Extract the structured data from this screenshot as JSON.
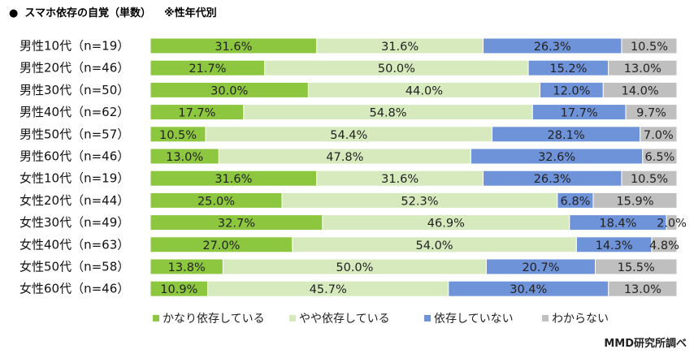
{
  "header": {
    "bullet": "●"
  },
  "chart_data": {
    "type": "bar",
    "orientation": "horizontal",
    "stacked": true,
    "title": "スマホ依存の自覚（単数）",
    "subtitle": "※性年代別",
    "xlabel": "",
    "ylabel": "",
    "xlim": [
      0,
      100
    ],
    "grid": false,
    "legend_position": "bottom",
    "unit": "%",
    "categories": [
      "男性10代（n=19）",
      "男性20代（n=46）",
      "男性30代（n=50）",
      "男性40代（n=62）",
      "男性50代（n=57）",
      "男性60代（n=46）",
      "女性10代（n=19）",
      "女性20代（n=44）",
      "女性30代（n=49）",
      "女性40代（n=63）",
      "女性50代（n=58）",
      "女性60代（n=46）"
    ],
    "series": [
      {
        "name": "かなり依存している",
        "color": "#8dc63f",
        "values": [
          31.6,
          21.7,
          30.0,
          17.7,
          10.5,
          13.0,
          31.6,
          25.0,
          32.7,
          27.0,
          13.8,
          10.9
        ]
      },
      {
        "name": "やや依存している",
        "color": "#d6eabd",
        "values": [
          31.6,
          50.0,
          44.0,
          54.8,
          54.4,
          47.8,
          31.6,
          52.3,
          46.9,
          54.0,
          50.0,
          45.7
        ]
      },
      {
        "name": "依存していない",
        "color": "#6f93d8",
        "values": [
          26.3,
          15.2,
          12.0,
          17.7,
          28.1,
          32.6,
          26.3,
          6.8,
          18.4,
          14.3,
          20.7,
          30.4
        ]
      },
      {
        "name": "わからない",
        "color": "#bfbfbf",
        "values": [
          10.5,
          13.0,
          14.0,
          9.7,
          7.0,
          6.5,
          10.5,
          15.9,
          2.0,
          4.8,
          15.5,
          13.0
        ]
      }
    ]
  },
  "source": "MMD研究所調べ"
}
